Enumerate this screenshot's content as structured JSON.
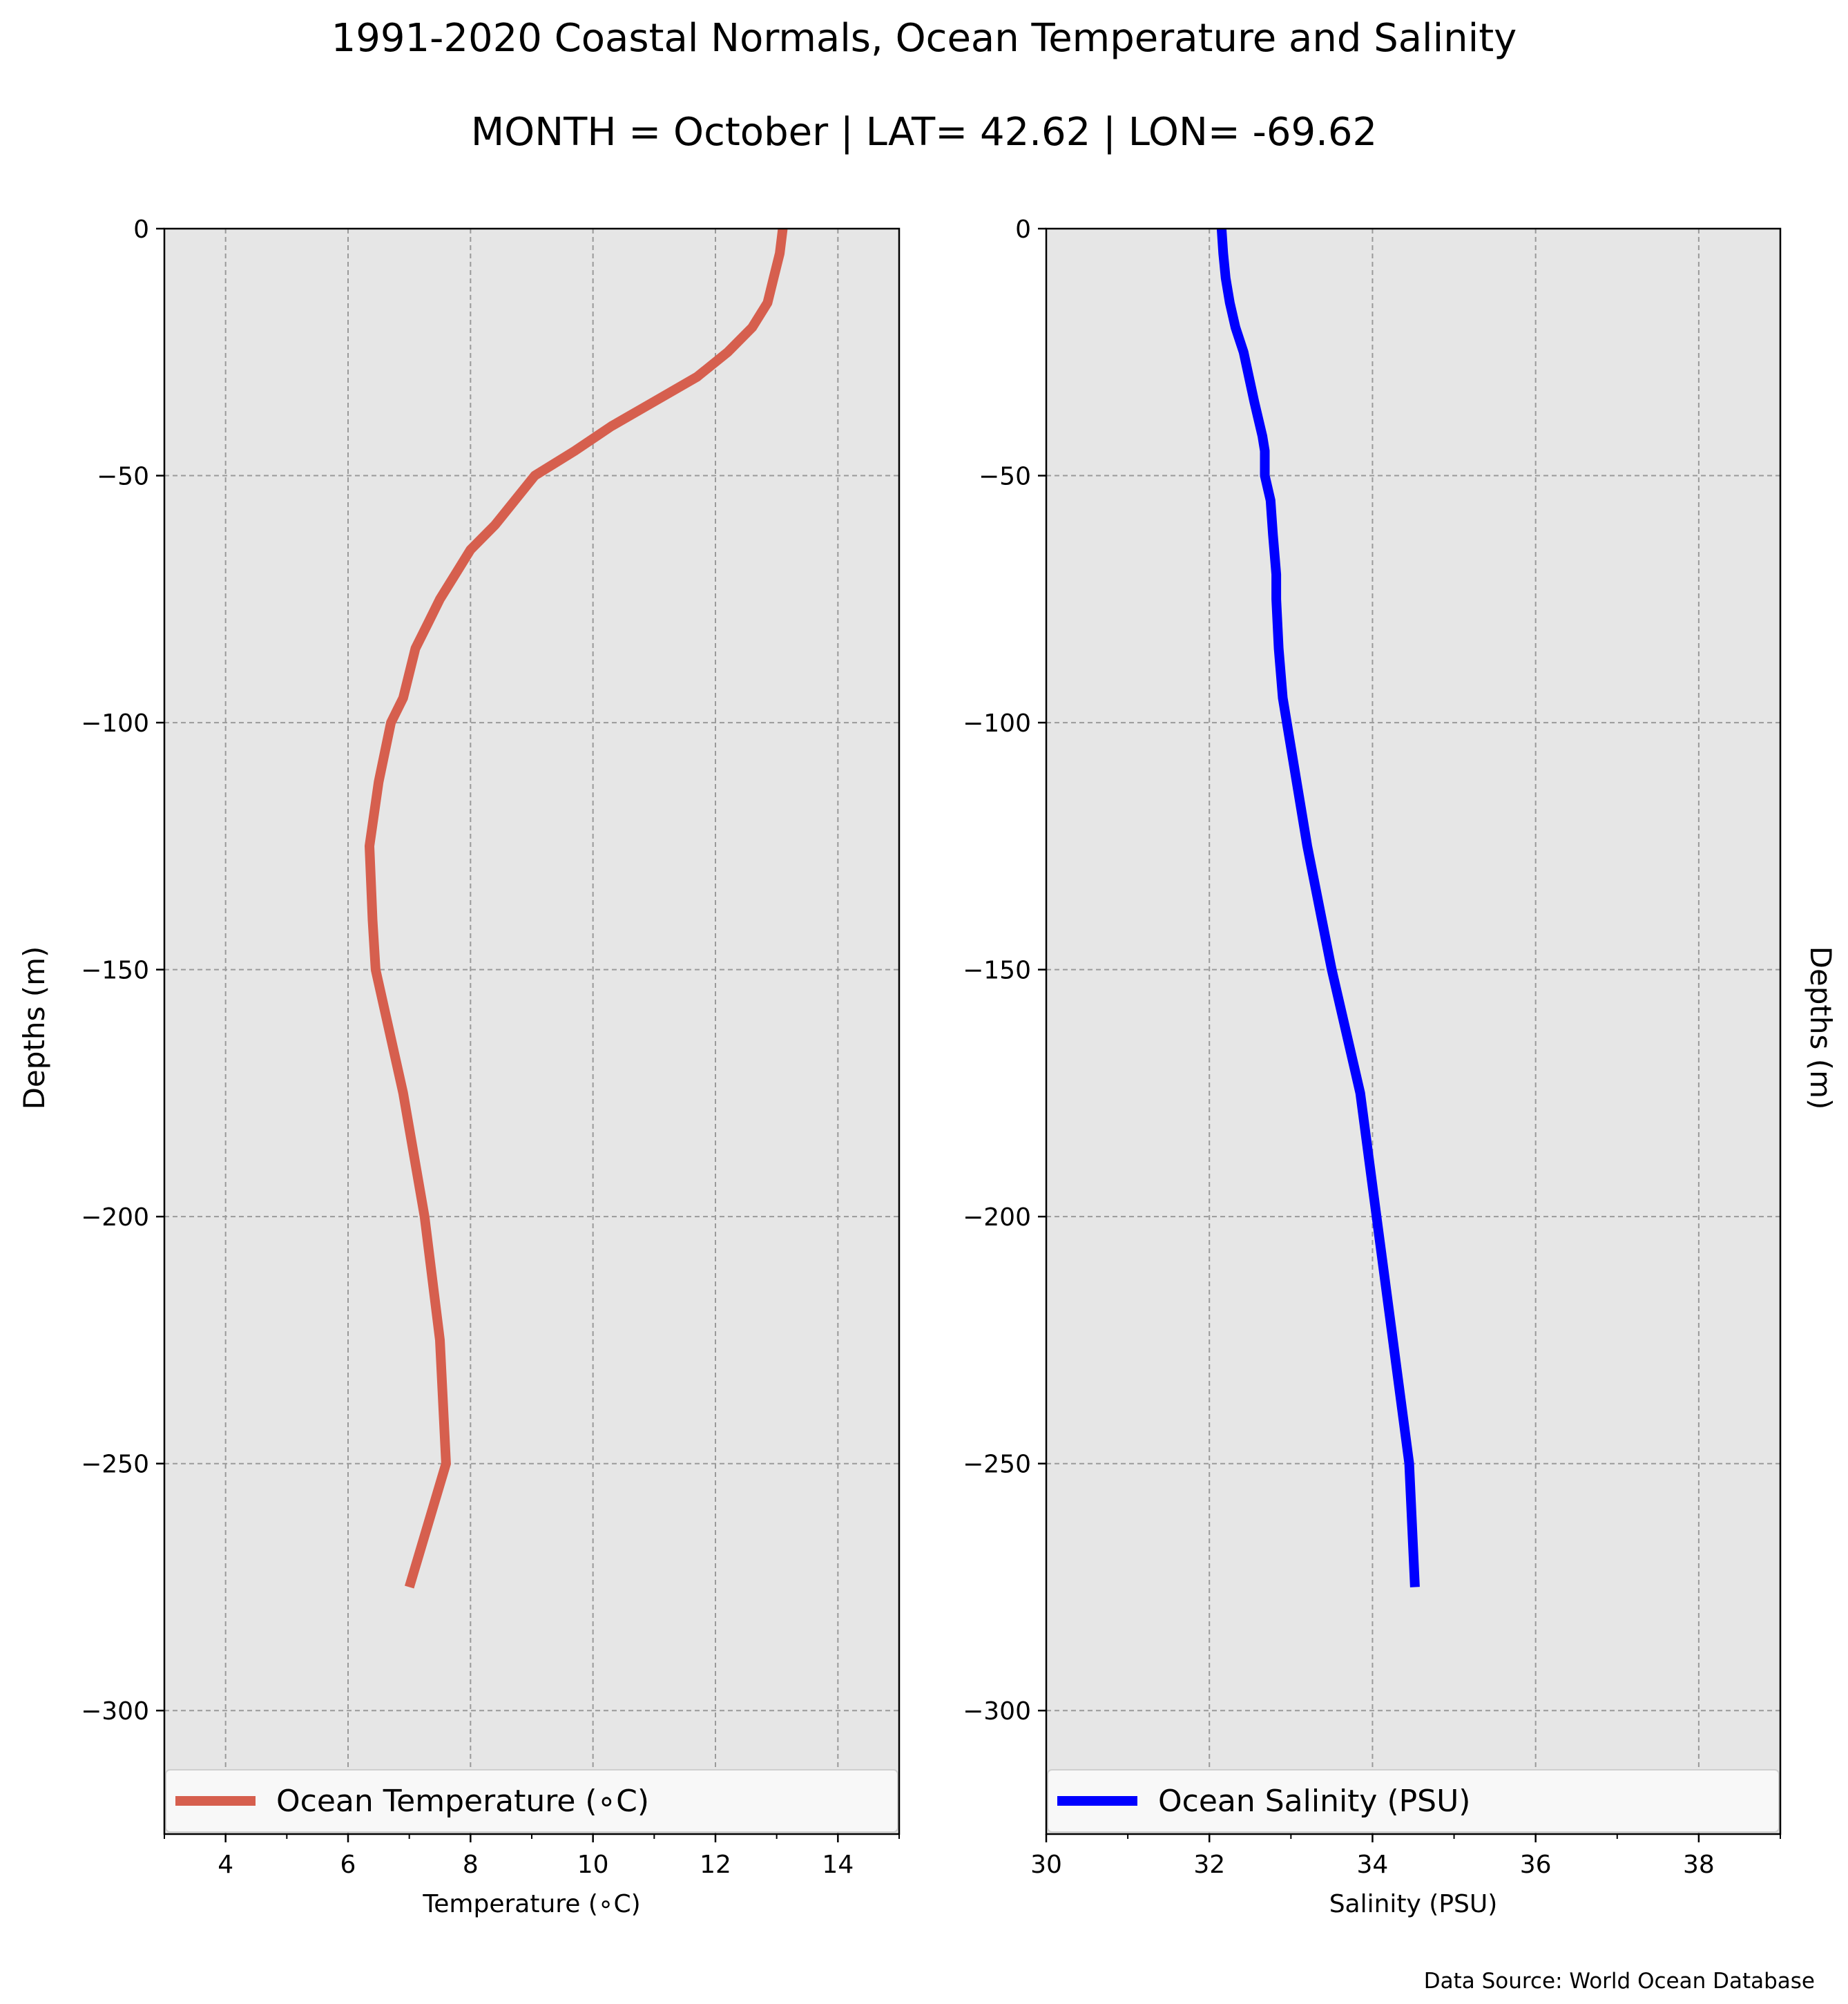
{
  "figure": {
    "title": "1991-2020 Coastal Normals, Ocean Temperature and Salinity",
    "subtitle": "MONTH = October | LAT= 42.62 | LON= -69.62",
    "source_note": "Data Source: World Ocean Database"
  },
  "chart_data": [
    {
      "type": "line",
      "xlabel": "Temperature ($^\\circ$C)",
      "xlabel_display": "Temperature (∘C)",
      "ylabel": "Depths (m)",
      "xlim": [
        3,
        15
      ],
      "ylim": [
        -325,
        0
      ],
      "x_ticks": [
        4,
        6,
        8,
        10,
        12,
        14
      ],
      "y_ticks": [
        0,
        -50,
        -100,
        -150,
        -200,
        -250,
        -300
      ],
      "grid": true,
      "legend_position": "bottom",
      "series": [
        {
          "name": "Ocean Temperature (∘C)",
          "color": "#d65f4e",
          "x": [
            13.1,
            13.05,
            12.95,
            12.85,
            12.6,
            12.2,
            11.7,
            11.0,
            10.3,
            9.7,
            9.05,
            8.4,
            8.0,
            7.75,
            7.5,
            7.3,
            7.1,
            6.9,
            6.7,
            6.5,
            6.35,
            6.4,
            6.45,
            6.9,
            7.25,
            7.5,
            7.6,
            7.0
          ],
          "y": [
            0,
            -5,
            -10,
            -15,
            -20,
            -25,
            -30,
            -35,
            -40,
            -45,
            -50,
            -60,
            -65,
            -70,
            -75,
            -80,
            -85,
            -95,
            -100,
            -112,
            -125,
            -140,
            -150,
            -175,
            -200,
            -225,
            -250,
            -275
          ]
        }
      ]
    },
    {
      "type": "line",
      "xlabel": "Salinity (PSU)",
      "ylabel": "Depths (m)",
      "xlim": [
        30,
        39
      ],
      "ylim": [
        -325,
        0
      ],
      "x_ticks": [
        30,
        32,
        34,
        36,
        38
      ],
      "y_ticks": [
        0,
        -50,
        -100,
        -150,
        -200,
        -250,
        -300
      ],
      "grid": true,
      "legend_position": "bottom",
      "series": [
        {
          "name": "Ocean Salinity (PSU)",
          "color": "#0000ff",
          "x": [
            32.15,
            32.17,
            32.2,
            32.25,
            32.32,
            32.42,
            32.55,
            32.65,
            32.68,
            32.68,
            32.75,
            32.78,
            32.82,
            32.82,
            32.85,
            32.9,
            32.95,
            33.2,
            33.5,
            33.85,
            34.05,
            34.25,
            34.45,
            34.52
          ],
          "y": [
            0,
            -5,
            -10,
            -15,
            -20,
            -25,
            -35,
            -42,
            -45,
            -50,
            -55,
            -62,
            -70,
            -75,
            -85,
            -95,
            -100,
            -125,
            -150,
            -175,
            -200,
            -225,
            -250,
            -275
          ]
        }
      ]
    }
  ]
}
